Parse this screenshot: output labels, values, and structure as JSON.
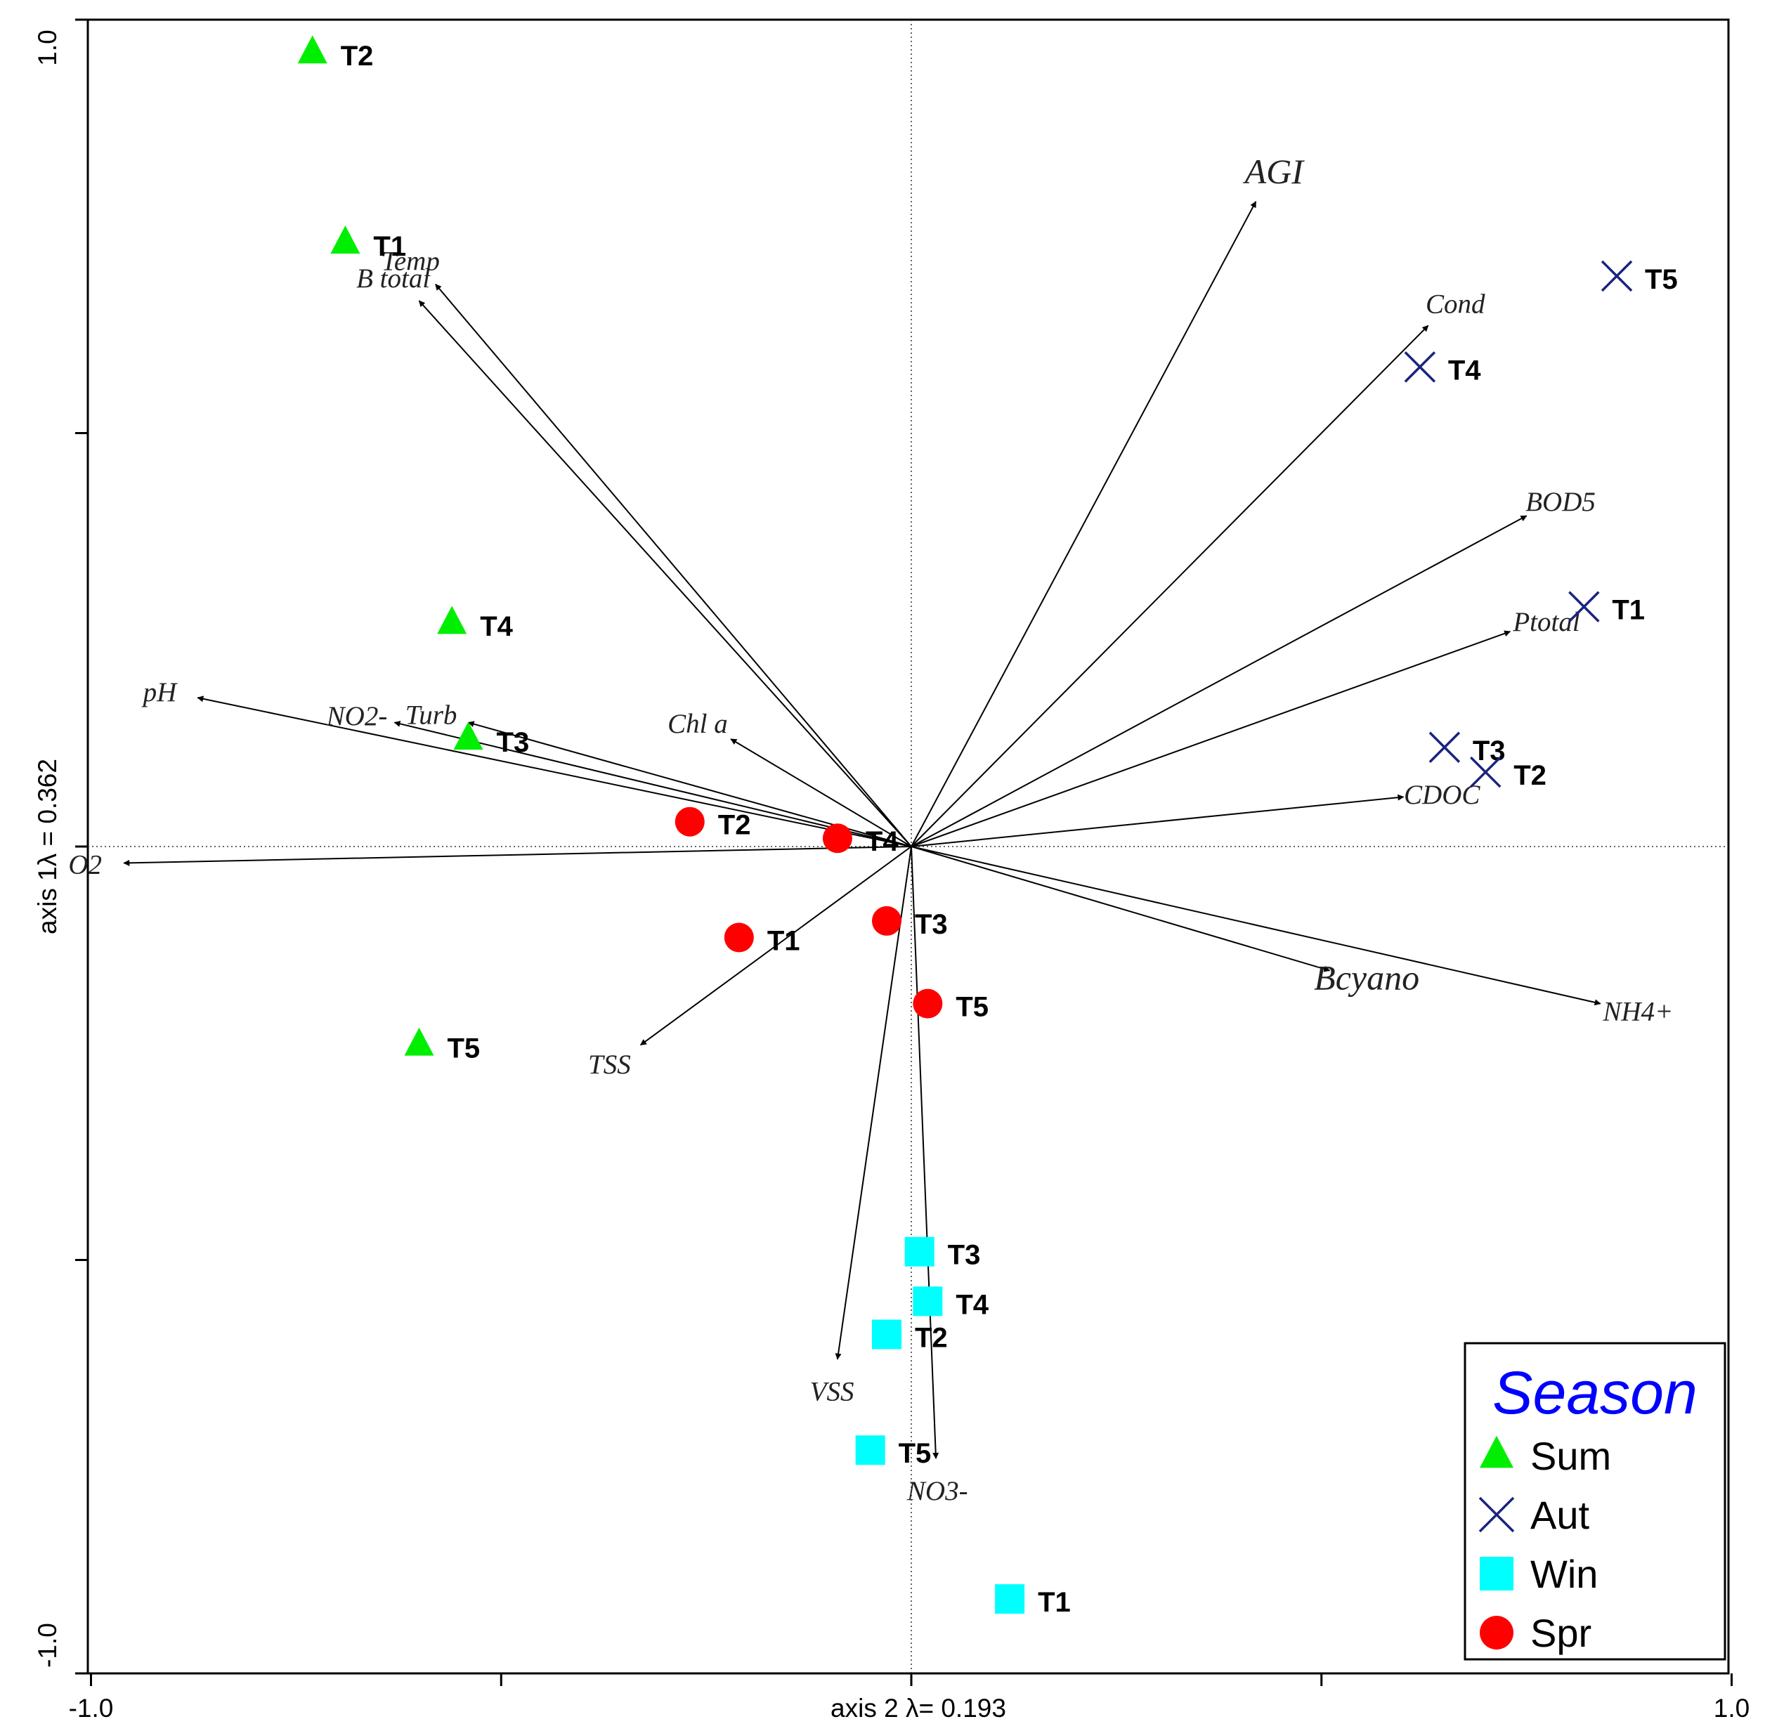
{
  "chart_data": {
    "type": "scatter",
    "subtype": "ordination biplot",
    "xlabel": "axis 2 λ= 0.193",
    "ylabel": "axis 1λ = 0.362",
    "xlim": [
      -1.0,
      1.0
    ],
    "ylim": [
      -1.0,
      1.0
    ],
    "x_tick_labels": [
      "-1.0",
      "1.0"
    ],
    "y_tick_labels": [
      "1.0",
      "-1.0"
    ],
    "reference_lines": "dotted lines through origin",
    "legend": {
      "title": "Season",
      "position": "bottom-right",
      "entries": [
        {
          "label": "Sum",
          "marker": "triangle",
          "color": "#00ee00"
        },
        {
          "label": "Aut",
          "marker": "x",
          "color": "#1a237e"
        },
        {
          "label": "Win",
          "marker": "square",
          "color": "#00ffff"
        },
        {
          "label": "Spr",
          "marker": "circle",
          "color": "#ff0000"
        }
      ]
    },
    "series": [
      {
        "name": "Sum",
        "marker": "triangle",
        "color": "#00ee00",
        "points": [
          {
            "label": "T2",
            "x": -0.73,
            "y": 0.96
          },
          {
            "label": "T1",
            "x": -0.69,
            "y": 0.73
          },
          {
            "label": "T4",
            "x": -0.56,
            "y": 0.27
          },
          {
            "label": "T3",
            "x": -0.54,
            "y": 0.13
          },
          {
            "label": "T5",
            "x": -0.6,
            "y": -0.24
          }
        ]
      },
      {
        "name": "Aut",
        "marker": "x",
        "color": "#1a237e",
        "points": [
          {
            "label": "T5",
            "x": 0.86,
            "y": 0.69
          },
          {
            "label": "T4",
            "x": 0.62,
            "y": 0.58
          },
          {
            "label": "T1",
            "x": 0.82,
            "y": 0.29
          },
          {
            "label": "T3",
            "x": 0.65,
            "y": 0.12
          },
          {
            "label": "T2",
            "x": 0.7,
            "y": 0.09
          }
        ]
      },
      {
        "name": "Win",
        "marker": "square",
        "color": "#00ffff",
        "points": [
          {
            "label": "T3",
            "x": 0.01,
            "y": -0.49
          },
          {
            "label": "T4",
            "x": 0.02,
            "y": -0.55
          },
          {
            "label": "T2",
            "x": -0.03,
            "y": -0.59
          },
          {
            "label": "T5",
            "x": -0.05,
            "y": -0.73
          },
          {
            "label": "T1",
            "x": 0.12,
            "y": -0.91
          }
        ]
      },
      {
        "name": "Spr",
        "marker": "circle",
        "color": "#ff0000",
        "points": [
          {
            "label": "T2",
            "x": -0.27,
            "y": 0.03
          },
          {
            "label": "T4",
            "x": -0.09,
            "y": 0.01
          },
          {
            "label": "T3",
            "x": -0.03,
            "y": -0.09
          },
          {
            "label": "T1",
            "x": -0.21,
            "y": -0.11
          },
          {
            "label": "T5",
            "x": 0.02,
            "y": -0.19
          }
        ]
      }
    ],
    "vectors": [
      {
        "name": "AGI",
        "x": 0.42,
        "y": 0.78
      },
      {
        "name": "Temp",
        "x": -0.58,
        "y": 0.68
      },
      {
        "name": "B total",
        "x": -0.6,
        "y": 0.66
      },
      {
        "name": "Cond",
        "x": 0.63,
        "y": 0.63
      },
      {
        "name": "BOD5",
        "x": 0.75,
        "y": 0.4
      },
      {
        "name": "Ptotal",
        "x": 0.73,
        "y": 0.26
      },
      {
        "name": "CDOC",
        "x": 0.6,
        "y": 0.06
      },
      {
        "name": "pH",
        "x": -0.87,
        "y": 0.18
      },
      {
        "name": "NO2-",
        "x": -0.63,
        "y": 0.15
      },
      {
        "name": "Turb",
        "x": -0.54,
        "y": 0.15
      },
      {
        "name": "Chl a",
        "x": -0.22,
        "y": 0.13
      },
      {
        "name": "O2",
        "x": -0.96,
        "y": -0.02
      },
      {
        "name": "TSS",
        "x": -0.33,
        "y": -0.24
      },
      {
        "name": "Bcyano",
        "x": 0.51,
        "y": -0.15
      },
      {
        "name": "NH4+",
        "x": 0.84,
        "y": -0.19
      },
      {
        "name": "VSS",
        "x": -0.09,
        "y": -0.62
      },
      {
        "name": "NO3-",
        "x": 0.03,
        "y": -0.74
      }
    ]
  }
}
